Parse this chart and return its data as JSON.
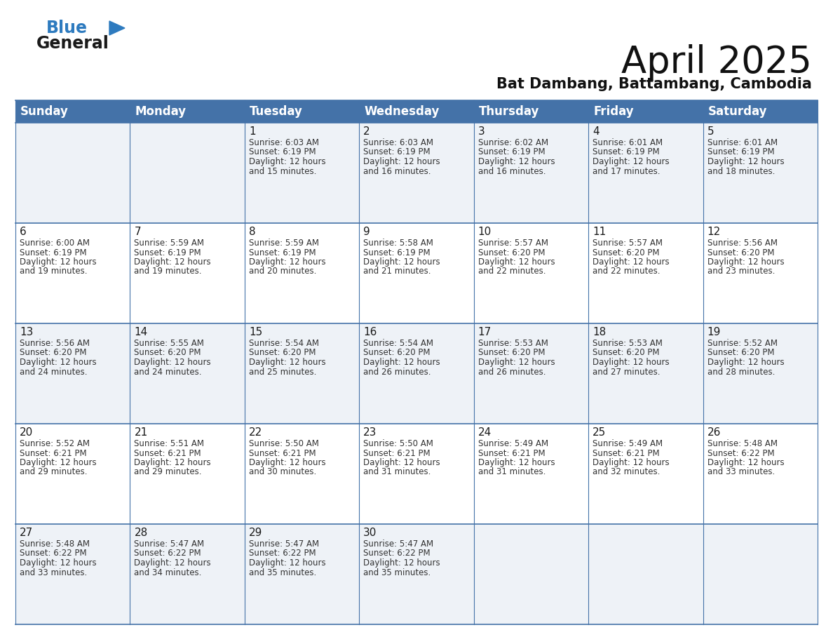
{
  "title": "April 2025",
  "subtitle": "Bat Dambang, Battambang, Cambodia",
  "header_bg": "#4472a8",
  "header_text_color": "#ffffff",
  "row_bg_even": "#eef2f7",
  "row_bg_odd": "#ffffff",
  "border_color": "#4472a8",
  "days_of_week": [
    "Sunday",
    "Monday",
    "Tuesday",
    "Wednesday",
    "Thursday",
    "Friday",
    "Saturday"
  ],
  "calendar": [
    [
      {
        "day": "",
        "sunrise": "",
        "sunset": "",
        "daylight": ""
      },
      {
        "day": "",
        "sunrise": "",
        "sunset": "",
        "daylight": ""
      },
      {
        "day": "1",
        "sunrise": "6:03 AM",
        "sunset": "6:19 PM",
        "daylight": "12 hours\nand 15 minutes."
      },
      {
        "day": "2",
        "sunrise": "6:03 AM",
        "sunset": "6:19 PM",
        "daylight": "12 hours\nand 16 minutes."
      },
      {
        "day": "3",
        "sunrise": "6:02 AM",
        "sunset": "6:19 PM",
        "daylight": "12 hours\nand 16 minutes."
      },
      {
        "day": "4",
        "sunrise": "6:01 AM",
        "sunset": "6:19 PM",
        "daylight": "12 hours\nand 17 minutes."
      },
      {
        "day": "5",
        "sunrise": "6:01 AM",
        "sunset": "6:19 PM",
        "daylight": "12 hours\nand 18 minutes."
      }
    ],
    [
      {
        "day": "6",
        "sunrise": "6:00 AM",
        "sunset": "6:19 PM",
        "daylight": "12 hours\nand 19 minutes."
      },
      {
        "day": "7",
        "sunrise": "5:59 AM",
        "sunset": "6:19 PM",
        "daylight": "12 hours\nand 19 minutes."
      },
      {
        "day": "8",
        "sunrise": "5:59 AM",
        "sunset": "6:19 PM",
        "daylight": "12 hours\nand 20 minutes."
      },
      {
        "day": "9",
        "sunrise": "5:58 AM",
        "sunset": "6:19 PM",
        "daylight": "12 hours\nand 21 minutes."
      },
      {
        "day": "10",
        "sunrise": "5:57 AM",
        "sunset": "6:20 PM",
        "daylight": "12 hours\nand 22 minutes."
      },
      {
        "day": "11",
        "sunrise": "5:57 AM",
        "sunset": "6:20 PM",
        "daylight": "12 hours\nand 22 minutes."
      },
      {
        "day": "12",
        "sunrise": "5:56 AM",
        "sunset": "6:20 PM",
        "daylight": "12 hours\nand 23 minutes."
      }
    ],
    [
      {
        "day": "13",
        "sunrise": "5:56 AM",
        "sunset": "6:20 PM",
        "daylight": "12 hours\nand 24 minutes."
      },
      {
        "day": "14",
        "sunrise": "5:55 AM",
        "sunset": "6:20 PM",
        "daylight": "12 hours\nand 24 minutes."
      },
      {
        "day": "15",
        "sunrise": "5:54 AM",
        "sunset": "6:20 PM",
        "daylight": "12 hours\nand 25 minutes."
      },
      {
        "day": "16",
        "sunrise": "5:54 AM",
        "sunset": "6:20 PM",
        "daylight": "12 hours\nand 26 minutes."
      },
      {
        "day": "17",
        "sunrise": "5:53 AM",
        "sunset": "6:20 PM",
        "daylight": "12 hours\nand 26 minutes."
      },
      {
        "day": "18",
        "sunrise": "5:53 AM",
        "sunset": "6:20 PM",
        "daylight": "12 hours\nand 27 minutes."
      },
      {
        "day": "19",
        "sunrise": "5:52 AM",
        "sunset": "6:20 PM",
        "daylight": "12 hours\nand 28 minutes."
      }
    ],
    [
      {
        "day": "20",
        "sunrise": "5:52 AM",
        "sunset": "6:21 PM",
        "daylight": "12 hours\nand 29 minutes."
      },
      {
        "day": "21",
        "sunrise": "5:51 AM",
        "sunset": "6:21 PM",
        "daylight": "12 hours\nand 29 minutes."
      },
      {
        "day": "22",
        "sunrise": "5:50 AM",
        "sunset": "6:21 PM",
        "daylight": "12 hours\nand 30 minutes."
      },
      {
        "day": "23",
        "sunrise": "5:50 AM",
        "sunset": "6:21 PM",
        "daylight": "12 hours\nand 31 minutes."
      },
      {
        "day": "24",
        "sunrise": "5:49 AM",
        "sunset": "6:21 PM",
        "daylight": "12 hours\nand 31 minutes."
      },
      {
        "day": "25",
        "sunrise": "5:49 AM",
        "sunset": "6:21 PM",
        "daylight": "12 hours\nand 32 minutes."
      },
      {
        "day": "26",
        "sunrise": "5:48 AM",
        "sunset": "6:22 PM",
        "daylight": "12 hours\nand 33 minutes."
      }
    ],
    [
      {
        "day": "27",
        "sunrise": "5:48 AM",
        "sunset": "6:22 PM",
        "daylight": "12 hours\nand 33 minutes."
      },
      {
        "day": "28",
        "sunrise": "5:47 AM",
        "sunset": "6:22 PM",
        "daylight": "12 hours\nand 34 minutes."
      },
      {
        "day": "29",
        "sunrise": "5:47 AM",
        "sunset": "6:22 PM",
        "daylight": "12 hours\nand 35 minutes."
      },
      {
        "day": "30",
        "sunrise": "5:47 AM",
        "sunset": "6:22 PM",
        "daylight": "12 hours\nand 35 minutes."
      },
      {
        "day": "",
        "sunrise": "",
        "sunset": "",
        "daylight": ""
      },
      {
        "day": "",
        "sunrise": "",
        "sunset": "",
        "daylight": ""
      },
      {
        "day": "",
        "sunrise": "",
        "sunset": "",
        "daylight": ""
      }
    ]
  ],
  "logo_general_color": "#1a1a1a",
  "logo_blue_color": "#2e7bbf",
  "title_fontsize": 38,
  "subtitle_fontsize": 15,
  "header_fontsize": 12,
  "day_num_fontsize": 11,
  "cell_text_fontsize": 8.5
}
